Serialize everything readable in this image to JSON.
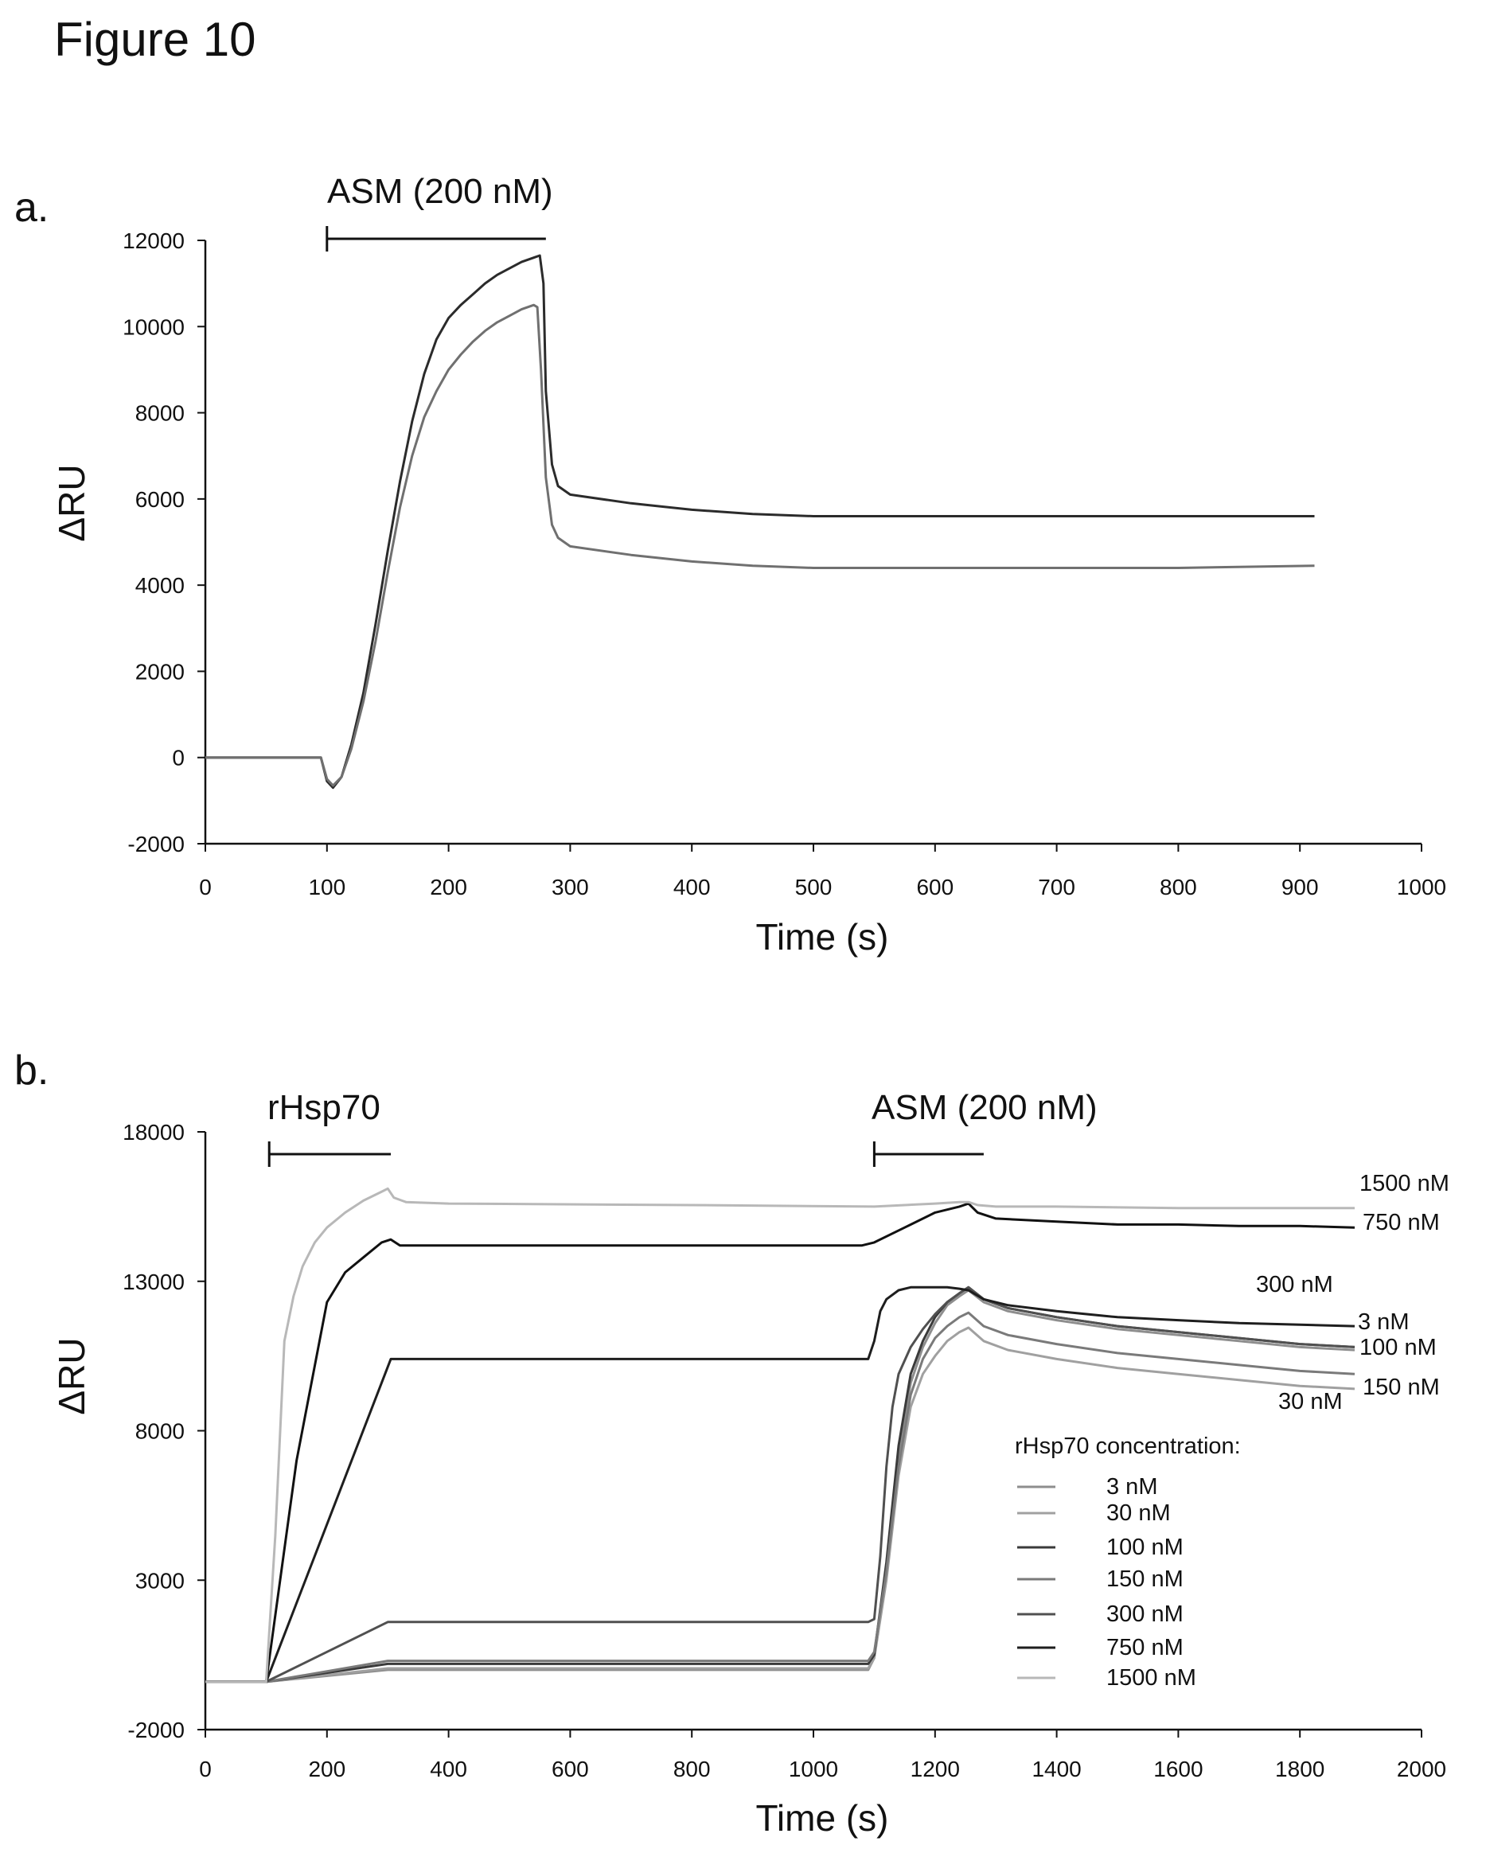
{
  "figure_title": "Figure 10",
  "chart_data": [
    {
      "panel": "a.",
      "type": "line",
      "xlabel": "Time (s)",
      "ylabel": "ΔRU",
      "xlim": [
        0,
        1000
      ],
      "ylim": [
        -2000,
        12000
      ],
      "xticks": [
        0,
        100,
        200,
        300,
        400,
        500,
        600,
        700,
        800,
        900,
        1000
      ],
      "yticks": [
        -2000,
        0,
        2000,
        4000,
        6000,
        8000,
        10000,
        12000
      ],
      "grid": false,
      "annotations": [
        {
          "text": "ASM (200 nM)",
          "x_start": 100,
          "x_end": 280
        }
      ],
      "series": [
        {
          "color": "#2b2b2b",
          "x": [
            0,
            95,
            100,
            105,
            112,
            120,
            130,
            140,
            150,
            160,
            170,
            180,
            190,
            200,
            210,
            220,
            230,
            240,
            250,
            260,
            270,
            275,
            278,
            280,
            285,
            290,
            300,
            350,
            400,
            450,
            500,
            550,
            600,
            700,
            800,
            912
          ],
          "y": [
            0,
            0,
            -550,
            -700,
            -450,
            300,
            1500,
            3100,
            4800,
            6400,
            7800,
            8900,
            9700,
            10200,
            10500,
            10750,
            11000,
            11200,
            11350,
            11500,
            11600,
            11650,
            11000,
            8500,
            6800,
            6300,
            6100,
            5900,
            5750,
            5650,
            5600,
            5600,
            5600,
            5600,
            5600,
            5600
          ]
        },
        {
          "color": "#707070",
          "x": [
            0,
            95,
            100,
            105,
            112,
            120,
            130,
            140,
            150,
            160,
            170,
            180,
            190,
            200,
            210,
            220,
            230,
            240,
            250,
            260,
            270,
            273,
            276,
            280,
            285,
            290,
            300,
            350,
            400,
            450,
            500,
            550,
            600,
            700,
            800,
            912
          ],
          "y": [
            0,
            0,
            -500,
            -650,
            -450,
            200,
            1300,
            2700,
            4300,
            5800,
            7000,
            7900,
            8500,
            9000,
            9350,
            9650,
            9900,
            10100,
            10250,
            10400,
            10500,
            10450,
            9000,
            6500,
            5400,
            5100,
            4900,
            4700,
            4550,
            4450,
            4400,
            4400,
            4400,
            4400,
            4400,
            4450
          ]
        }
      ]
    },
    {
      "panel": "b.",
      "type": "line",
      "xlabel": "Time (s)",
      "ylabel": "ΔRU",
      "xlim": [
        0,
        2000
      ],
      "ylim": [
        -2000,
        18000
      ],
      "xticks": [
        0,
        200,
        400,
        600,
        800,
        1000,
        1200,
        1400,
        1600,
        1800,
        2000
      ],
      "yticks": [
        -2000,
        3000,
        8000,
        13000,
        18000
      ],
      "grid": false,
      "annotations": [
        {
          "text": "rHsp70",
          "x_start": 105,
          "x_end": 305
        },
        {
          "text": "ASM (200 nM)",
          "x_start": 1100,
          "x_end": 1280
        }
      ],
      "legend": {
        "title": "rHsp70 concentration:",
        "placement": "bottom-right",
        "entries": [
          "3 nM",
          "30 nM",
          "100 nM",
          "150 nM",
          "300 nM",
          "750 nM",
          "1500 nM"
        ]
      },
      "series": [
        {
          "name": "3 nM",
          "end_label": "3 nM",
          "color": "#8e8e8e",
          "x": [
            0,
            100,
            300,
            1090,
            1100,
            1120,
            1140,
            1160,
            1180,
            1200,
            1220,
            1240,
            1255,
            1280,
            1320,
            1400,
            1500,
            1600,
            1700,
            1800,
            1890
          ],
          "y": [
            -400,
            -400,
            0,
            0,
            400,
            3500,
            7200,
            9600,
            10800,
            11600,
            12200,
            12500,
            12700,
            12300,
            12000,
            11700,
            11400,
            11200,
            11000,
            10800,
            10700
          ]
        },
        {
          "name": "30 nM",
          "end_label": "30 nM",
          "color": "#a0a0a0",
          "x": [
            0,
            100,
            300,
            1090,
            1100,
            1120,
            1140,
            1160,
            1180,
            1200,
            1220,
            1240,
            1255,
            1280,
            1320,
            1400,
            1500,
            1600,
            1700,
            1800,
            1890
          ],
          "y": [
            -400,
            -400,
            50,
            50,
            400,
            3000,
            6500,
            8800,
            9900,
            10500,
            11000,
            11300,
            11450,
            11000,
            10700,
            10400,
            10100,
            9900,
            9700,
            9500,
            9400
          ]
        },
        {
          "name": "100 nM",
          "end_label": "100 nM",
          "color": "#3a3a3a",
          "x": [
            0,
            100,
            300,
            1090,
            1100,
            1120,
            1140,
            1160,
            1180,
            1200,
            1220,
            1240,
            1255,
            1280,
            1320,
            1400,
            1500,
            1600,
            1700,
            1800,
            1890
          ],
          "y": [
            -400,
            -400,
            200,
            200,
            500,
            3600,
            7500,
            9900,
            11000,
            11800,
            12300,
            12600,
            12800,
            12400,
            12100,
            11800,
            11500,
            11300,
            11100,
            10900,
            10800
          ]
        },
        {
          "name": "150 nM",
          "end_label": "150 nM",
          "color": "#7a7a7a",
          "x": [
            0,
            100,
            300,
            1090,
            1100,
            1120,
            1140,
            1160,
            1180,
            1200,
            1220,
            1240,
            1255,
            1280,
            1320,
            1400,
            1500,
            1600,
            1700,
            1800,
            1890
          ],
          "y": [
            -400,
            -400,
            300,
            300,
            600,
            3300,
            6800,
            9200,
            10400,
            11100,
            11500,
            11800,
            11950,
            11500,
            11200,
            10900,
            10600,
            10400,
            10200,
            10000,
            9900
          ]
        },
        {
          "name": "300 nM",
          "end_label": "300 nM",
          "color": "#505050",
          "x": [
            0,
            100,
            300,
            1080,
            1090,
            1100,
            1110,
            1120,
            1130,
            1140,
            1160,
            1180,
            1200,
            1220,
            1240,
            1255,
            1280,
            1320,
            1400,
            1500,
            1600,
            1700,
            1800,
            1890
          ],
          "y": [
            -400,
            -400,
            1600,
            1600,
            1600,
            1700,
            3800,
            6800,
            8800,
            9900,
            10800,
            11400,
            11900,
            12300,
            12600,
            12800,
            12400,
            12100,
            11800,
            11500,
            11300,
            11100,
            10900,
            10800
          ]
        },
        {
          "name": "750 nM",
          "end_label": "300 nM",
          "color": "#1e1e1e",
          "x": [
            0,
            100,
            305,
            1080,
            1090,
            1100,
            1110,
            1120,
            1140,
            1160,
            1180,
            1200,
            1220,
            1240,
            1255,
            1280,
            1320,
            1400,
            1500,
            1600,
            1700,
            1800,
            1890
          ],
          "y": [
            -400,
            -400,
            10400,
            10400,
            10400,
            11000,
            12000,
            12400,
            12700,
            12800,
            12800,
            12800,
            12800,
            12750,
            12700,
            12400,
            12200,
            12000,
            11800,
            11700,
            11600,
            11550,
            11500
          ]
        },
        {
          "name": "1500 nM",
          "end_label": "750 nM",
          "color": "#111111",
          "x": [
            0,
            100,
            150,
            200,
            230,
            260,
            290,
            305,
            320,
            1080,
            1100,
            1150,
            1200,
            1240,
            1255,
            1270,
            1300,
            1400,
            1500,
            1600,
            1700,
            1800,
            1890
          ],
          "y": [
            -400,
            -400,
            7000,
            12300,
            13300,
            13800,
            14300,
            14400,
            14200,
            14200,
            14300,
            14800,
            15300,
            15500,
            15600,
            15300,
            15100,
            15000,
            14900,
            14900,
            14850,
            14850,
            14800
          ]
        },
        {
          "name": "1500 nM (top)",
          "end_label": "1500 nM",
          "color": "#b8b8b8",
          "x": [
            0,
            100,
            115,
            130,
            145,
            160,
            180,
            200,
            230,
            260,
            290,
            300,
            310,
            330,
            400,
            800,
            1100,
            1150,
            1200,
            1240,
            1255,
            1270,
            1300,
            1400,
            1600,
            1890
          ],
          "y": [
            -400,
            -400,
            4500,
            11000,
            12500,
            13500,
            14300,
            14800,
            15300,
            15700,
            16000,
            16100,
            15800,
            15650,
            15600,
            15550,
            15500,
            15550,
            15600,
            15650,
            15650,
            15550,
            15500,
            15500,
            15450,
            15450
          ]
        }
      ]
    }
  ]
}
